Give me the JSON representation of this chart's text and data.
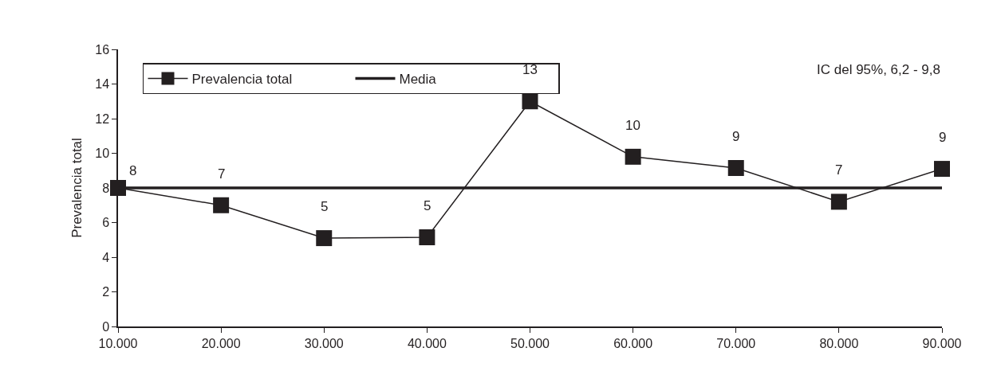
{
  "chart_data": {
    "type": "line",
    "ylabel": "Prevalencia total",
    "x": [
      10000,
      20000,
      30000,
      40000,
      50000,
      60000,
      70000,
      80000,
      90000
    ],
    "xlim": [
      10000,
      90000
    ],
    "xticks": [
      {
        "value": 10000,
        "label": "10.000"
      },
      {
        "value": 20000,
        "label": "20.000"
      },
      {
        "value": 30000,
        "label": "30.000"
      },
      {
        "value": 40000,
        "label": "40.000"
      },
      {
        "value": 50000,
        "label": "50.000"
      },
      {
        "value": 60000,
        "label": "60.000"
      },
      {
        "value": 70000,
        "label": "70.000"
      },
      {
        "value": 80000,
        "label": "80.000"
      },
      {
        "value": 90000,
        "label": "90.000"
      }
    ],
    "ylim": [
      0,
      16
    ],
    "yticks": [
      0,
      2,
      4,
      6,
      8,
      10,
      12,
      14,
      16
    ],
    "series": [
      {
        "name": "Prevalencia total",
        "color": "#231f20",
        "marker": "square",
        "values": [
          8.0,
          7.0,
          5.1,
          5.15,
          13.0,
          9.8,
          9.15,
          7.2,
          9.1
        ],
        "value_labels": [
          "8",
          "7",
          "5",
          "5",
          "13",
          "10",
          "9",
          "7",
          "9"
        ]
      },
      {
        "name": "Media",
        "color": "#231f20",
        "marker": "none",
        "values": [
          8,
          8,
          8,
          8,
          8,
          8,
          8,
          8,
          8
        ]
      }
    ],
    "annotations": [
      "IC del 95%, 6,2 - 9,8"
    ],
    "grid": false,
    "legend": "top left",
    "line_style": "solid"
  }
}
